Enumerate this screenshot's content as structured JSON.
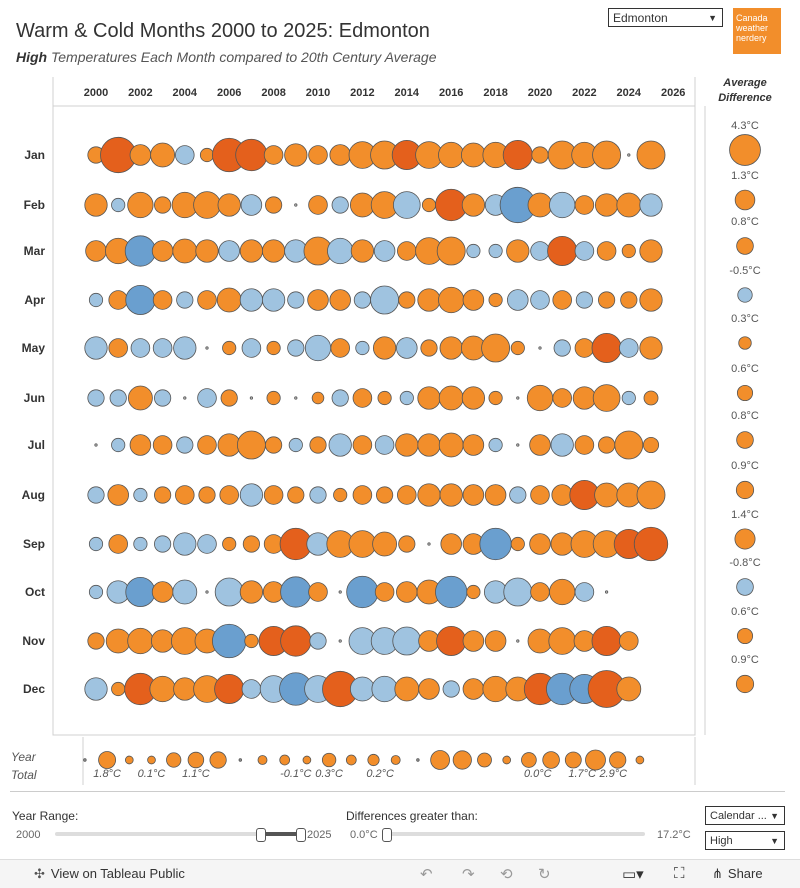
{
  "header": {
    "title": "Warm & Cold Months 2000 to 2025: Edmonton",
    "subtitle_bold": "High",
    "subtitle_rest": " Temperatures Each Month compared to 20th Century Average",
    "city_value": "Edmonton",
    "logo_text": [
      "Canada",
      "weather",
      "nerdery"
    ]
  },
  "colors": {
    "warm": "#f28e2b",
    "warm_dark": "#e4601c",
    "cold": "#6a9fcf",
    "cold_light": "#9fc3e0",
    "neutral": "#c8c8c8"
  },
  "chart_data": {
    "type": "scatter",
    "encoding": "bubble size = magnitude of temperature difference; orange = above average, blue = below average",
    "title": "Warm & Cold Months 2000 to 2025: Edmonton",
    "x_axis_ticks": [
      "2000",
      "2002",
      "2004",
      "2006",
      "2008",
      "2010",
      "2012",
      "2014",
      "2016",
      "2018",
      "2020",
      "2022",
      "2024",
      "2026"
    ],
    "x_range": [
      1999,
      2026.6
    ],
    "months": [
      "Jan",
      "Feb",
      "Mar",
      "Apr",
      "May",
      "Jun",
      "Jul",
      "Aug",
      "Sep",
      "Oct",
      "Nov",
      "Dec"
    ],
    "years": [
      2000,
      2001,
      2002,
      2003,
      2004,
      2005,
      2006,
      2007,
      2008,
      2009,
      2010,
      2011,
      2012,
      2013,
      2014,
      2015,
      2016,
      2017,
      2018,
      2019,
      2020,
      2021,
      2022,
      2023,
      2024,
      2025
    ],
    "values": [
      [
        1,
        8,
        2,
        3,
        -1.5,
        0.5,
        7,
        6,
        1.5,
        2.5,
        1.5,
        2,
        4,
        4.5,
        5,
        4,
        3.5,
        3,
        3.5,
        5,
        1,
        4.5,
        3.5,
        4.5,
        0,
        4.5
      ],
      [
        2.5,
        -0.5,
        3.5,
        1,
        3.5,
        4,
        2.5,
        -2,
        1,
        0,
        1.5,
        -1,
        3,
        4,
        -4,
        0.5,
        6,
        2.5,
        -2,
        -8,
        3,
        -3.5,
        1.5,
        2.5,
        3,
        -2.5
      ],
      [
        2,
        3.5,
        -5.5,
        2,
        3,
        2.5,
        -2,
        2.5,
        2.5,
        -2.5,
        4.5,
        -3.5,
        2.5,
        -2,
        1.5,
        4,
        4.5,
        -0.5,
        -0.5,
        2.5,
        -1.5,
        5,
        -1.5,
        1.5,
        0.5,
        2.5
      ],
      [
        -0.5,
        1.5,
        -5,
        1.5,
        -1,
        1.5,
        3,
        -2.5,
        -2.5,
        -1,
        2,
        2,
        -1,
        -4.5,
        1,
        2.5,
        3.5,
        2,
        0.5,
        -2,
        -1.5,
        1.5,
        -1,
        1,
        1,
        2.5
      ],
      [
        -2.5,
        1.5,
        -1.5,
        -1.5,
        -2.5,
        0,
        0.5,
        -1.5,
        0.5,
        -1,
        -3.5,
        1.5,
        -0.5,
        2.5,
        -2,
        1,
        2.5,
        3,
        4.5,
        0.5,
        0,
        -1,
        1.5,
        5,
        -1.5,
        2.5
      ],
      [
        -1,
        -1,
        3,
        -1,
        0,
        -1.5,
        1,
        0,
        0.5,
        0,
        0.3,
        -1,
        1.5,
        0.5,
        -0.5,
        2.5,
        3,
        2.5,
        0.5,
        0,
        3.5,
        1.5,
        2.5,
        4,
        -0.5,
        0.6
      ],
      [
        0,
        -0.5,
        2,
        1.5,
        -1,
        1.5,
        2.5,
        4.5,
        1,
        -0.5,
        1,
        -2.5,
        1.5,
        -1.5,
        2.5,
        2.5,
        3,
        2,
        -0.5,
        0,
        2,
        -2.5,
        1.5,
        1,
        4.5,
        0.8
      ],
      [
        -1,
        2,
        -0.5,
        1,
        1.5,
        1,
        1.5,
        -2.5,
        1.5,
        1,
        -1,
        0.5,
        1.5,
        1,
        1.5,
        2.5,
        2.5,
        2,
        2,
        -1,
        1.5,
        2,
        5,
        3,
        3,
        4.5
      ],
      [
        -0.5,
        1.5,
        -0.5,
        -1,
        -2.5,
        -1.5,
        0.5,
        1,
        1.5,
        6,
        -2.5,
        4,
        4,
        3,
        1,
        0,
        2,
        2,
        -6,
        0.5,
        2,
        2.5,
        4,
        4,
        5,
        7
      ],
      [
        -0.5,
        -2.5,
        -5,
        2,
        -3,
        0,
        -4.5,
        2.5,
        2,
        -5.5,
        1.5,
        0,
        -6,
        1.5,
        2,
        3,
        -6,
        0.5,
        -2.5,
        -4.5,
        1.5,
        3.5,
        -1.5,
        0,
        null,
        null
      ],
      [
        1,
        3,
        3.5,
        2.5,
        4,
        3,
        -7,
        0.5,
        5,
        5.5,
        -1,
        0,
        -4,
        -4,
        -4.5,
        2,
        5,
        2,
        2,
        0,
        3,
        4,
        2,
        5,
        1.5,
        null
      ],
      [
        -2.5,
        0.5,
        6,
        3.5,
        2.5,
        4,
        5,
        -1.5,
        -4,
        -6.5,
        -4,
        8,
        -3,
        -3.5,
        3,
        2,
        -1,
        2,
        3.5,
        3,
        6,
        -6,
        -5,
        9,
        3,
        null
      ]
    ],
    "average_difference": {
      "header": [
        "Average",
        "Difference"
      ],
      "labels": [
        "4.3°C",
        "1.3°C",
        "0.8°C",
        "-0.5°C",
        "0.3°C",
        "0.6°C",
        "0.8°C",
        "0.9°C",
        "1.4°C",
        "-0.8°C",
        "0.6°C",
        "0.9°C"
      ],
      "values": [
        4.3,
        1.3,
        0.8,
        -0.5,
        0.3,
        0.6,
        0.8,
        0.9,
        1.4,
        -0.8,
        0.6,
        0.9
      ]
    },
    "year_total": {
      "label": [
        "Year",
        "Total"
      ],
      "values": [
        0,
        1.8,
        0.1,
        0.1,
        1.1,
        1.4,
        1.6,
        0,
        0.2,
        0.3,
        0.1,
        0.9,
        0.3,
        0.5,
        0.2,
        0,
        2.4,
        2.2,
        1.0,
        0.1,
        1.2,
        1.7,
        1.5,
        2.9,
        1.6,
        0.1
      ],
      "labels": [
        {
          "text": "1.8°C",
          "year": 2000.5
        },
        {
          "text": "0.1°C",
          "year": 2002.5
        },
        {
          "text": "1.1°C",
          "year": 2004.5
        },
        {
          "text": "-0.1°C",
          "year": 2009
        },
        {
          "text": "0.3°C",
          "year": 2010.5
        },
        {
          "text": "0.2°C",
          "year": 2012.8
        },
        {
          "text": "0.0°C",
          "year": 2019.9
        },
        {
          "text": "1.7°C",
          "year": 2021.9
        },
        {
          "text": "2.9°C",
          "year": 2023.3
        }
      ]
    }
  },
  "controls": {
    "year_range_label": "Year Range:",
    "year_min": "2000",
    "year_max": "2025",
    "diff_label": "Differences greater than:",
    "diff_min": "0.0°C",
    "diff_max": "17.2°C",
    "period_value": "Calendar ...",
    "measure_value": "High"
  },
  "footer": {
    "view_label": "View on Tableau Public",
    "share_label": "Share"
  }
}
